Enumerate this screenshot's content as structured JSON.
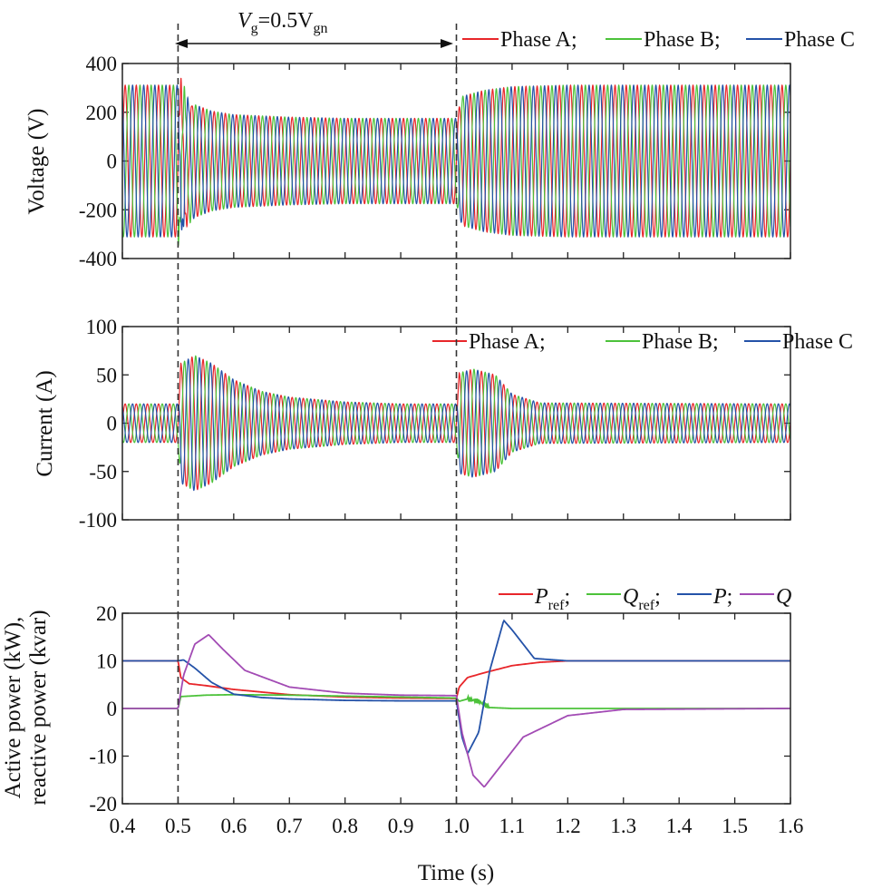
{
  "chart_data": [
    {
      "type": "line",
      "ylabel": "Voltage (V)",
      "xlim": [
        0.4,
        1.6
      ],
      "ylim": [
        -400,
        400
      ],
      "yticks": [
        400,
        200,
        0,
        -200,
        -400
      ],
      "ytick_labels": [
        "400",
        "200",
        "0",
        "-200",
        "-400"
      ],
      "waveform_frequency_hz": 50,
      "envelope_amplitude": {
        "times": [
          0.4,
          0.5,
          0.52,
          0.56,
          0.6,
          0.7,
          0.8,
          1.0,
          1.01,
          1.05,
          1.1,
          1.2,
          1.6
        ],
        "values": [
          311,
          311,
          240,
          205,
          190,
          180,
          175,
          175,
          265,
          290,
          305,
          311,
          311
        ]
      },
      "series": [
        {
          "name": "Phase A",
          "color": "#e8262a",
          "phase_deg": 0
        },
        {
          "name": "Phase B",
          "color": "#4cc23a",
          "phase_deg": -120
        },
        {
          "name": "Phase C",
          "color": "#2452a8",
          "phase_deg": 120
        }
      ],
      "legend": {
        "items": [
          "Phase A;",
          "Phase B;",
          "Phase C"
        ],
        "placement": "top-right"
      },
      "annotation": {
        "text_main": "V",
        "text_sub1": "g",
        "text_mid": "=0.5V",
        "text_sub2": "gn",
        "x_start": 0.5,
        "x_end": 1.0
      }
    },
    {
      "type": "line",
      "ylabel": "Current (A)",
      "xlim": [
        0.4,
        1.6
      ],
      "ylim": [
        -100,
        100
      ],
      "yticks": [
        100,
        50,
        0,
        -50,
        -100
      ],
      "ytick_labels": [
        "100",
        "50",
        "0",
        "-50",
        "-100"
      ],
      "waveform_frequency_hz": 50,
      "envelope_amplitude": {
        "times": [
          0.4,
          0.5,
          0.505,
          0.53,
          0.56,
          0.6,
          0.65,
          0.7,
          0.8,
          0.9,
          1.0,
          1.005,
          1.03,
          1.07,
          1.1,
          1.15,
          1.6
        ],
        "values": [
          20,
          20,
          62,
          70,
          62,
          45,
          33,
          27,
          22,
          20,
          20,
          52,
          56,
          50,
          30,
          21,
          20
        ]
      },
      "series": [
        {
          "name": "Phase A",
          "color": "#e8262a",
          "phase_deg": 0
        },
        {
          "name": "Phase B",
          "color": "#4cc23a",
          "phase_deg": -120
        },
        {
          "name": "Phase C",
          "color": "#2452a8",
          "phase_deg": 120
        }
      ],
      "legend": {
        "items": [
          "Phase A;",
          "Phase B;",
          "Phase C"
        ],
        "placement": "top-right"
      }
    },
    {
      "type": "line",
      "ylabel_line1": "Active power (kW),",
      "ylabel_line2": "reactive power (kvar)",
      "xlabel": "Time (s)",
      "xlim": [
        0.4,
        1.6
      ],
      "ylim": [
        -20,
        20
      ],
      "yticks": [
        20,
        10,
        0,
        -10,
        -20
      ],
      "ytick_labels": [
        "20",
        "10",
        "0",
        "-10",
        "-20"
      ],
      "xticks": [
        0.4,
        0.5,
        0.6,
        0.7,
        0.8,
        0.9,
        1.0,
        1.1,
        1.2,
        1.3,
        1.4,
        1.5,
        1.6
      ],
      "xtick_labels": [
        "0.4",
        "0.5",
        "0.6",
        "0.7",
        "0.8",
        "0.9",
        "1.0",
        "1.1",
        "1.2",
        "1.3",
        "1.4",
        "1.5",
        "1.6"
      ],
      "series": [
        {
          "name": "P_ref",
          "color": "#e8262a",
          "x": [
            0.4,
            0.5,
            0.505,
            0.52,
            0.55,
            0.6,
            0.7,
            0.8,
            0.9,
            1.0,
            1.005,
            1.02,
            1.05,
            1.1,
            1.15,
            1.2,
            1.6
          ],
          "y": [
            10,
            10,
            6.5,
            5.2,
            4.8,
            4.0,
            2.9,
            2.4,
            2.2,
            2.1,
            4.5,
            6.5,
            7.5,
            9.0,
            9.7,
            10,
            10
          ]
        },
        {
          "name": "Q_ref",
          "color": "#4cc23a",
          "x": [
            0.4,
            0.5,
            0.505,
            0.55,
            0.6,
            0.7,
            0.8,
            0.9,
            1.0,
            1.005,
            1.02,
            1.04,
            1.06,
            1.1,
            1.6
          ],
          "y": [
            0,
            0,
            2.5,
            2.8,
            2.9,
            2.8,
            2.6,
            2.4,
            2.2,
            1.5,
            2.0,
            1.5,
            0.2,
            0,
            0
          ]
        },
        {
          "name": "P",
          "color": "#2452a8",
          "x": [
            0.4,
            0.5,
            0.51,
            0.53,
            0.56,
            0.6,
            0.65,
            0.7,
            0.8,
            0.9,
            1.0,
            1.01,
            1.02,
            1.04,
            1.06,
            1.085,
            1.1,
            1.14,
            1.2,
            1.6
          ],
          "y": [
            10,
            10,
            10.2,
            8.5,
            5.5,
            3.0,
            2.3,
            2.0,
            1.7,
            1.6,
            1.6,
            -6,
            -9.5,
            -5,
            8,
            18.5,
            16.5,
            10.5,
            10,
            10
          ]
        },
        {
          "name": "Q",
          "color": "#a24bb4",
          "x": [
            0.4,
            0.5,
            0.51,
            0.53,
            0.555,
            0.58,
            0.62,
            0.7,
            0.8,
            0.9,
            1.0,
            1.01,
            1.03,
            1.05,
            1.08,
            1.12,
            1.2,
            1.3,
            1.6
          ],
          "y": [
            0,
            0,
            7,
            13.5,
            15.5,
            12.5,
            8,
            4.5,
            3.2,
            2.8,
            2.7,
            -5,
            -14,
            -16.5,
            -12,
            -6,
            -1.5,
            -0.2,
            0
          ]
        }
      ],
      "legend": {
        "placement": "top-right"
      }
    }
  ],
  "labels": {
    "p_ref_main": "P",
    "p_ref_sub": "ref",
    "q_ref_main": "Q",
    "q_ref_sub": "ref",
    "p_main": "P",
    "q_main": "Q",
    "sep": ";"
  }
}
